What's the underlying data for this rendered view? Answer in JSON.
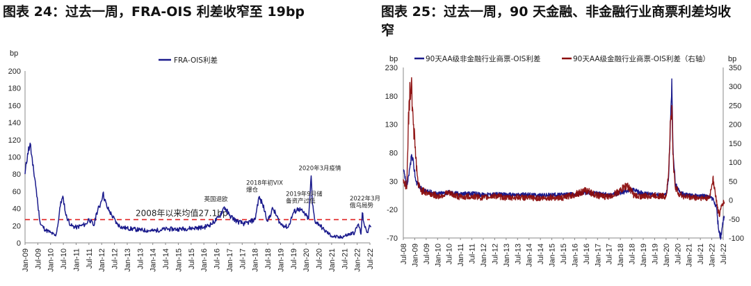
{
  "titles": {
    "left": "图表 24：过去一周，FRA-OIS 利差收窄至 19bp",
    "right": "图表 25：过去一周，90 天金融、非金融行业商票利差均收窄"
  },
  "colors": {
    "navy": "#1a1a8c",
    "darkred": "#8b0c0c",
    "avg_line": "#e02020",
    "axis": "#888888"
  },
  "chart_data": [
    {
      "type": "line",
      "unit_label": "bp",
      "ylim": [
        0,
        200
      ],
      "yticks": [
        0,
        20,
        40,
        60,
        80,
        100,
        120,
        140,
        160,
        180,
        200
      ],
      "x_tick_labels": [
        "Jan-09",
        "Jul-09",
        "Jan-10",
        "Jul-10",
        "Jan-11",
        "Jul-11",
        "Jan-12",
        "Jul-12",
        "Jan-13",
        "Jul-13",
        "Jan-14",
        "Jul-14",
        "Jan-15",
        "Jul-15",
        "Jan-16",
        "Jul-16",
        "Jan-17",
        "Jul-17",
        "Jan-18",
        "Jul-18",
        "Jan-19",
        "Jul-19",
        "Jan-20",
        "Jul-20",
        "Jan-21",
        "Jul-21",
        "Jan-22",
        "Jul-22"
      ],
      "legend": "top-center",
      "series": [
        {
          "name": "FRA-OIS利差",
          "color": "#1a1a8c",
          "x": [
            2009.0,
            2009.1,
            2009.2,
            2009.3,
            2009.4,
            2009.5,
            2009.6,
            2009.8,
            2010.0,
            2010.2,
            2010.3,
            2010.4,
            2010.5,
            2010.6,
            2010.8,
            2011.0,
            2011.2,
            2011.4,
            2011.5,
            2011.7,
            2011.8,
            2011.95,
            2012.05,
            2012.2,
            2012.4,
            2012.6,
            2012.8,
            2013.0,
            2013.5,
            2014.0,
            2014.5,
            2015.0,
            2015.5,
            2016.0,
            2016.3,
            2016.6,
            2016.8,
            2017.0,
            2017.3,
            2017.6,
            2018.0,
            2018.15,
            2018.3,
            2018.5,
            2018.7,
            2019.0,
            2019.3,
            2019.5,
            2019.7,
            2019.9,
            2020.1,
            2020.2,
            2020.25,
            2020.35,
            2020.5,
            2020.7,
            2021.0,
            2021.3,
            2021.6,
            2021.9,
            2022.05,
            2022.15,
            2022.2,
            2022.3,
            2022.4,
            2022.5,
            2022.55
          ],
          "values": [
            80,
            104,
            116,
            90,
            72,
            45,
            22,
            15,
            12,
            8,
            24,
            48,
            52,
            32,
            20,
            18,
            20,
            22,
            28,
            20,
            35,
            45,
            58,
            42,
            32,
            22,
            18,
            17,
            15,
            14,
            16,
            16,
            17,
            18,
            22,
            30,
            42,
            32,
            25,
            22,
            27,
            53,
            45,
            25,
            40,
            22,
            18,
            35,
            40,
            35,
            28,
            78,
            45,
            25,
            22,
            15,
            8,
            6,
            9,
            12,
            22,
            10,
            35,
            18,
            12,
            20,
            19
          ]
        }
      ],
      "reference_line": {
        "value": 27.1,
        "label": "2008年以来均值27.1bp"
      },
      "annotations": [
        {
          "text": [
            "英国退欧"
          ],
          "x": 2016.5,
          "y": 42
        },
        {
          "text": [
            "2018年初VIX",
            "爆仓"
          ],
          "x": 2018.15,
          "y": 53
        },
        {
          "text": [
            "2019年9月储",
            "备资产过低"
          ],
          "x": 2019.7,
          "y": 40
        },
        {
          "text": [
            "2020年3月疫情"
          ],
          "x": 2020.2,
          "y": 78
        },
        {
          "text": [
            "2022年3月",
            "俄乌局势"
          ],
          "x": 2022.2,
          "y": 35
        }
      ]
    },
    {
      "type": "line",
      "unit_label_left": "bp",
      "unit_label_right": "bp",
      "ylim_left": [
        -70,
        230
      ],
      "yticks_left": [
        -70,
        -20,
        30,
        80,
        130,
        180,
        230
      ],
      "ylim_right": [
        -100,
        350
      ],
      "yticks_right": [
        -100,
        -50,
        0,
        50,
        100,
        150,
        200,
        250,
        300,
        350
      ],
      "x_tick_labels": [
        "Jul-08",
        "Jan-09",
        "Jul-09",
        "Jan-10",
        "Jul-10",
        "Jan-11",
        "Jul-11",
        "Jan-12",
        "Jul-12",
        "Jan-13",
        "Jul-13",
        "Jan-14",
        "Jul-14",
        "Jan-15",
        "Jul-15",
        "Jan-16",
        "Jul-16",
        "Jan-17",
        "Jul-17",
        "Jan-18",
        "Jul-18",
        "Jan-19",
        "Jul-19",
        "Jan-20",
        "Jul-20",
        "Jan-21",
        "Jul-21",
        "Jan-22",
        "Jul-22"
      ],
      "legend": "top",
      "series": [
        {
          "name": "90天AA级非金融行业商票-OIS利差",
          "axis": "left",
          "color": "#1a1a8c",
          "x": [
            2008.5,
            2008.65,
            2008.75,
            2008.85,
            2008.95,
            2009.05,
            2009.15,
            2009.3,
            2009.5,
            2009.8,
            2010.0,
            2010.5,
            2011.0,
            2011.5,
            2012.0,
            2012.5,
            2013.0,
            2013.5,
            2014.0,
            2014.5,
            2015.0,
            2015.5,
            2016.0,
            2016.5,
            2017.0,
            2017.5,
            2018.0,
            2018.5,
            2019.0,
            2019.5,
            2020.0,
            2020.1,
            2020.2,
            2020.25,
            2020.3,
            2020.4,
            2020.6,
            2020.8,
            2021.0,
            2021.5,
            2021.9,
            2022.05,
            2022.2,
            2022.3,
            2022.4,
            2022.5,
            2022.55
          ],
          "values": [
            50,
            20,
            40,
            75,
            60,
            30,
            25,
            15,
            12,
            10,
            8,
            10,
            8,
            8,
            6,
            7,
            6,
            6,
            6,
            5,
            6,
            6,
            7,
            10,
            8,
            6,
            9,
            15,
            8,
            6,
            5,
            30,
            140,
            210,
            95,
            25,
            10,
            6,
            5,
            4,
            3,
            -2,
            -15,
            -55,
            -70,
            -40,
            -35
          ]
        },
        {
          "name": "90天AA级金融行业商票-OIS利差（右轴）",
          "axis": "right",
          "color": "#8b0c0c",
          "x": [
            2008.5,
            2008.65,
            2008.75,
            2008.85,
            2008.95,
            2009.05,
            2009.15,
            2009.3,
            2009.5,
            2009.8,
            2010.0,
            2010.5,
            2011.0,
            2011.5,
            2012.0,
            2012.5,
            2013.0,
            2013.5,
            2014.0,
            2014.5,
            2015.0,
            2015.5,
            2016.0,
            2016.5,
            2017.0,
            2017.5,
            2018.0,
            2018.3,
            2018.6,
            2019.0,
            2019.5,
            2020.0,
            2020.1,
            2020.2,
            2020.25,
            2020.3,
            2020.4,
            2020.6,
            2020.8,
            2021.0,
            2021.5,
            2021.9,
            2022.05,
            2022.15,
            2022.25,
            2022.35,
            2022.45,
            2022.55
          ],
          "values": [
            55,
            30,
            260,
            310,
            200,
            110,
            40,
            25,
            20,
            15,
            10,
            18,
            8,
            10,
            6,
            12,
            6,
            8,
            6,
            5,
            7,
            6,
            15,
            25,
            12,
            8,
            25,
            40,
            12,
            10,
            12,
            10,
            60,
            210,
            250,
            120,
            35,
            15,
            10,
            8,
            6,
            5,
            60,
            20,
            -20,
            -40,
            -10,
            -5
          ]
        }
      ]
    }
  ]
}
